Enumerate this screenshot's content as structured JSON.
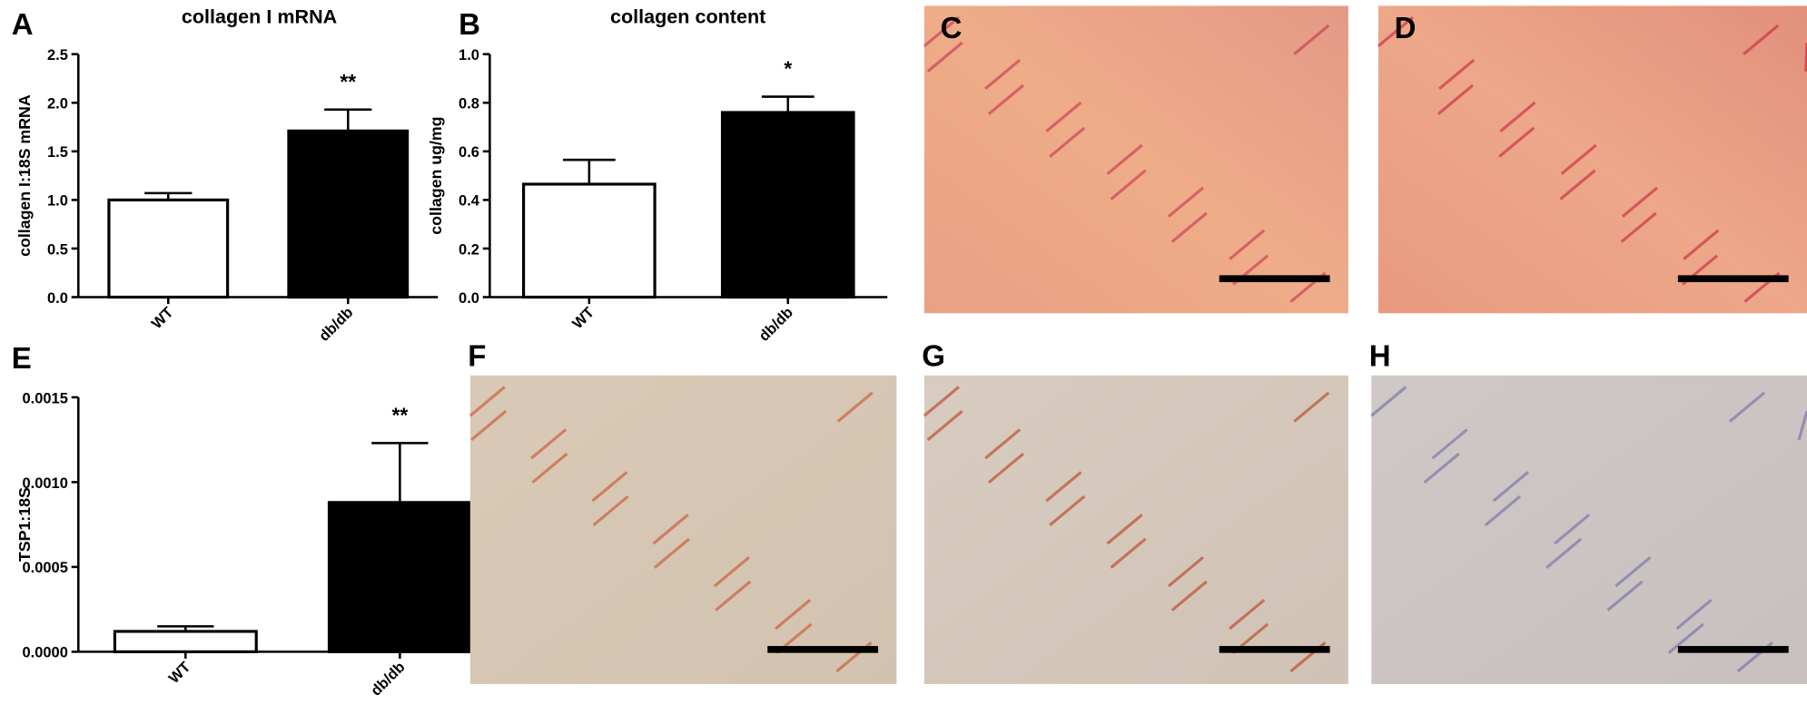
{
  "chart_data": [
    {
      "type": "bar",
      "panel": "A",
      "title": "collagen I mRNA",
      "ylabel": "collagen I:18S mRNA",
      "categories": [
        "WT",
        "db/db"
      ],
      "values": [
        1.0,
        1.71
      ],
      "errors": [
        0.07,
        0.22
      ],
      "colors": [
        "#ffffff",
        "#000000"
      ],
      "annotation": "**",
      "ylim": [
        0,
        2.5
      ],
      "yticks": [
        {
          "value": 0,
          "label": "0.0"
        },
        0.5,
        {
          "value": 1,
          "label": "1.0"
        },
        1.5,
        {
          "value": 2,
          "label": "2.0"
        },
        2.5
      ]
    },
    {
      "type": "bar",
      "panel": "B",
      "title": "collagen content",
      "ylabel": "collagen ug/mg",
      "categories": [
        "WT",
        "db/db"
      ],
      "values": [
        0.465,
        0.76
      ],
      "errors": [
        0.1,
        0.065
      ],
      "colors": [
        "#ffffff",
        "#000000"
      ],
      "annotation": "*",
      "ylim": [
        0,
        1.0
      ],
      "yticks": [
        {
          "value": 0,
          "label": "0.0"
        },
        0.2,
        0.4,
        0.6,
        0.8,
        {
          "value": 1,
          "label": "1.0"
        }
      ]
    },
    {
      "type": "bar",
      "panel": "E",
      "ylabel": "TSP1:18S",
      "categories": [
        "WT",
        "db/db"
      ],
      "values": [
        0.00012,
        0.00088
      ],
      "errors": [
        3e-05,
        0.00035
      ],
      "colors": [
        "#ffffff",
        "#000000"
      ],
      "annotation": "**",
      "ylim": [
        0,
        0.0015
      ],
      "yticks": [
        {
          "value": 0,
          "label": "0.0000"
        },
        {
          "value": 0.0005,
          "label": "0.0005"
        },
        {
          "value": 0.001,
          "label": "0.0010"
        },
        {
          "value": 0.0015,
          "label": "0.0015"
        }
      ]
    }
  ],
  "images": [
    {
      "panel": "C"
    },
    {
      "panel": "D"
    },
    {
      "panel": "F"
    },
    {
      "panel": "G"
    },
    {
      "panel": "H"
    }
  ]
}
